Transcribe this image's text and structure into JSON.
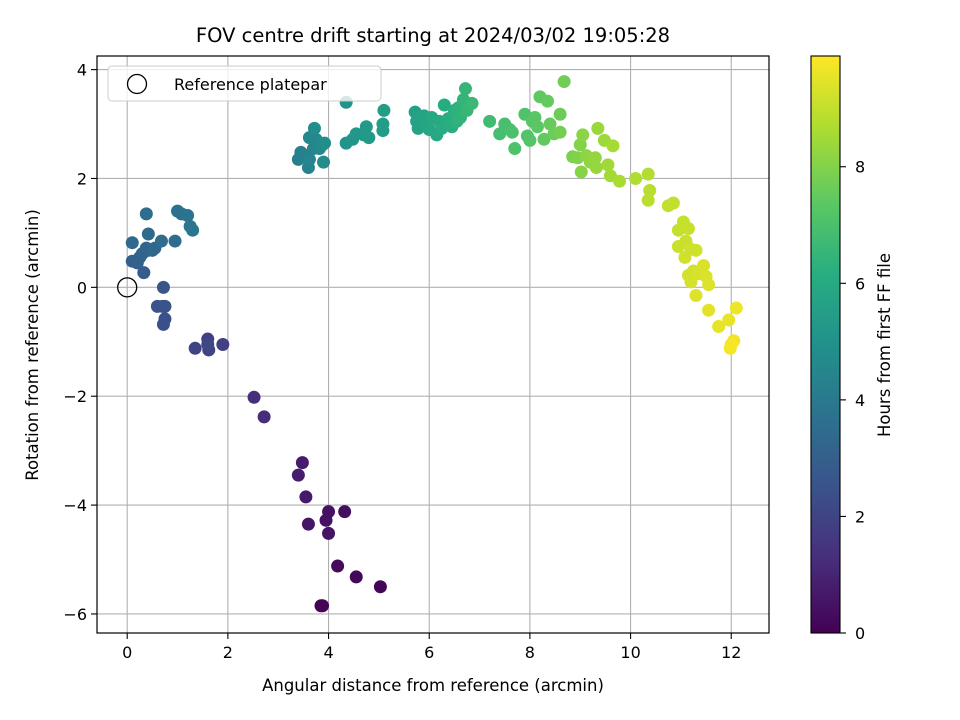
{
  "chart_data": {
    "type": "scatter",
    "title": "FOV centre drift starting at 2024/03/02 19:05:28",
    "xlabel": "Angular distance from reference (arcmin)",
    "ylabel": "Rotation from reference (arcmin)",
    "xlim": [
      -0.6,
      12.75
    ],
    "ylim": [
      -6.35,
      4.25
    ],
    "xticks": [
      0,
      2,
      4,
      6,
      8,
      10,
      12
    ],
    "xtick_labels": [
      "0",
      "2",
      "4",
      "6",
      "8",
      "10",
      "12"
    ],
    "yticks": [
      -6,
      -4,
      -2,
      0,
      2,
      4
    ],
    "ytick_labels": [
      "−6",
      "−4",
      "−2",
      "0",
      "2",
      "4"
    ],
    "grid": true,
    "legend": {
      "placement": "top-left",
      "entries": [
        {
          "label": "Reference platepar",
          "marker": "open-circle"
        }
      ]
    },
    "reference_point": {
      "x": 0,
      "y": 0
    },
    "colormap": "viridis",
    "colorbar": {
      "label": "Hours from first FF file",
      "range": [
        0,
        9.9
      ],
      "ticks": [
        0,
        2,
        4,
        6,
        8
      ],
      "tick_labels": [
        "0",
        "2",
        "4",
        "6",
        "8"
      ]
    },
    "points": [
      {
        "x": 3.85,
        "y": -5.85,
        "c": 0.05
      },
      {
        "x": 3.88,
        "y": -5.85,
        "c": 0.1
      },
      {
        "x": 5.03,
        "y": -5.5,
        "c": 0.15
      },
      {
        "x": 4.55,
        "y": -5.32,
        "c": 0.2
      },
      {
        "x": 4.18,
        "y": -5.12,
        "c": 0.25
      },
      {
        "x": 4.32,
        "y": -4.12,
        "c": 0.4
      },
      {
        "x": 4.0,
        "y": -4.12,
        "c": 0.45
      },
      {
        "x": 3.95,
        "y": -4.28,
        "c": 0.5
      },
      {
        "x": 4.0,
        "y": -4.52,
        "c": 0.55
      },
      {
        "x": 3.6,
        "y": -4.35,
        "c": 0.6
      },
      {
        "x": 3.55,
        "y": -3.85,
        "c": 0.7
      },
      {
        "x": 3.48,
        "y": -3.22,
        "c": 0.75
      },
      {
        "x": 3.4,
        "y": -3.45,
        "c": 0.8
      },
      {
        "x": 2.72,
        "y": -2.38,
        "c": 1.3
      },
      {
        "x": 2.52,
        "y": -2.02,
        "c": 1.35
      },
      {
        "x": 1.9,
        "y": -1.05,
        "c": 1.9
      },
      {
        "x": 1.6,
        "y": -0.95,
        "c": 1.95
      },
      {
        "x": 1.62,
        "y": -1.15,
        "c": 2.0
      },
      {
        "x": 1.35,
        "y": -1.12,
        "c": 2.05
      },
      {
        "x": 1.6,
        "y": -1.05,
        "c": 2.1
      },
      {
        "x": 0.75,
        "y": -0.58,
        "c": 2.4
      },
      {
        "x": 0.72,
        "y": -0.68,
        "c": 2.45
      },
      {
        "x": 0.7,
        "y": -0.35,
        "c": 2.5
      },
      {
        "x": 0.6,
        "y": -0.35,
        "c": 2.55
      },
      {
        "x": 0.75,
        "y": -0.35,
        "c": 2.6
      },
      {
        "x": 0.72,
        "y": 0.0,
        "c": 2.65
      },
      {
        "x": 0.33,
        "y": 0.27,
        "c": 2.9
      },
      {
        "x": 0.2,
        "y": 0.45,
        "c": 3.0
      },
      {
        "x": 0.1,
        "y": 0.48,
        "c": 3.05
      },
      {
        "x": 0.25,
        "y": 0.55,
        "c": 3.1
      },
      {
        "x": 0.3,
        "y": 0.62,
        "c": 3.15
      },
      {
        "x": 0.42,
        "y": 0.68,
        "c": 3.2
      },
      {
        "x": 0.38,
        "y": 0.72,
        "c": 3.25
      },
      {
        "x": 0.5,
        "y": 0.68,
        "c": 3.3
      },
      {
        "x": 0.55,
        "y": 0.72,
        "c": 3.35
      },
      {
        "x": 0.1,
        "y": 0.82,
        "c": 3.4
      },
      {
        "x": 0.42,
        "y": 0.98,
        "c": 3.45
      },
      {
        "x": 0.68,
        "y": 0.85,
        "c": 3.5
      },
      {
        "x": 0.95,
        "y": 0.85,
        "c": 3.55
      },
      {
        "x": 0.38,
        "y": 1.35,
        "c": 3.6
      },
      {
        "x": 1.0,
        "y": 1.4,
        "c": 3.7
      },
      {
        "x": 1.08,
        "y": 1.35,
        "c": 3.75
      },
      {
        "x": 1.2,
        "y": 1.32,
        "c": 3.8
      },
      {
        "x": 1.25,
        "y": 1.12,
        "c": 3.85
      },
      {
        "x": 1.3,
        "y": 1.05,
        "c": 3.9
      },
      {
        "x": 3.4,
        "y": 2.35,
        "c": 4.25
      },
      {
        "x": 3.45,
        "y": 2.48,
        "c": 4.3
      },
      {
        "x": 3.55,
        "y": 2.42,
        "c": 4.35
      },
      {
        "x": 3.6,
        "y": 2.2,
        "c": 4.4
      },
      {
        "x": 3.62,
        "y": 2.35,
        "c": 4.45
      },
      {
        "x": 3.7,
        "y": 2.55,
        "c": 4.5
      },
      {
        "x": 3.62,
        "y": 2.75,
        "c": 4.55
      },
      {
        "x": 3.75,
        "y": 2.72,
        "c": 4.6
      },
      {
        "x": 3.82,
        "y": 2.55,
        "c": 4.65
      },
      {
        "x": 3.88,
        "y": 2.62,
        "c": 4.7
      },
      {
        "x": 3.9,
        "y": 2.3,
        "c": 4.75
      },
      {
        "x": 3.72,
        "y": 2.92,
        "c": 4.8
      },
      {
        "x": 3.92,
        "y": 2.65,
        "c": 4.85
      },
      {
        "x": 4.35,
        "y": 3.4,
        "c": 5.05
      },
      {
        "x": 4.35,
        "y": 2.65,
        "c": 5.1
      },
      {
        "x": 4.48,
        "y": 2.72,
        "c": 5.15
      },
      {
        "x": 4.55,
        "y": 2.82,
        "c": 5.2
      },
      {
        "x": 4.7,
        "y": 2.8,
        "c": 5.25
      },
      {
        "x": 4.75,
        "y": 2.95,
        "c": 5.3
      },
      {
        "x": 4.8,
        "y": 2.75,
        "c": 5.35
      },
      {
        "x": 5.08,
        "y": 2.88,
        "c": 5.4
      },
      {
        "x": 5.08,
        "y": 3.0,
        "c": 5.45
      },
      {
        "x": 5.1,
        "y": 3.25,
        "c": 5.5
      },
      {
        "x": 5.72,
        "y": 3.22,
        "c": 5.6
      },
      {
        "x": 5.75,
        "y": 3.05,
        "c": 5.65
      },
      {
        "x": 5.78,
        "y": 2.92,
        "c": 5.7
      },
      {
        "x": 5.85,
        "y": 3.1,
        "c": 5.75
      },
      {
        "x": 5.9,
        "y": 3.15,
        "c": 5.8
      },
      {
        "x": 5.95,
        "y": 3.0,
        "c": 5.85
      },
      {
        "x": 6.0,
        "y": 2.9,
        "c": 5.9
      },
      {
        "x": 6.05,
        "y": 3.12,
        "c": 5.95
      },
      {
        "x": 6.15,
        "y": 2.8,
        "c": 6.0
      },
      {
        "x": 6.2,
        "y": 3.05,
        "c": 6.05
      },
      {
        "x": 6.25,
        "y": 2.92,
        "c": 6.1
      },
      {
        "x": 6.3,
        "y": 3.35,
        "c": 6.15
      },
      {
        "x": 6.38,
        "y": 3.1,
        "c": 6.2
      },
      {
        "x": 6.45,
        "y": 2.95,
        "c": 6.25
      },
      {
        "x": 6.5,
        "y": 3.25,
        "c": 6.3
      },
      {
        "x": 6.55,
        "y": 3.05,
        "c": 6.35
      },
      {
        "x": 6.58,
        "y": 3.3,
        "c": 6.4
      },
      {
        "x": 6.62,
        "y": 3.12,
        "c": 6.45
      },
      {
        "x": 6.68,
        "y": 3.45,
        "c": 6.5
      },
      {
        "x": 6.72,
        "y": 3.65,
        "c": 6.55
      },
      {
        "x": 6.75,
        "y": 3.25,
        "c": 6.6
      },
      {
        "x": 6.85,
        "y": 3.38,
        "c": 6.65
      },
      {
        "x": 7.2,
        "y": 3.05,
        "c": 6.8
      },
      {
        "x": 7.4,
        "y": 2.82,
        "c": 6.9
      },
      {
        "x": 7.5,
        "y": 3.0,
        "c": 6.95
      },
      {
        "x": 7.6,
        "y": 2.9,
        "c": 7.0
      },
      {
        "x": 7.65,
        "y": 2.85,
        "c": 7.05
      },
      {
        "x": 7.7,
        "y": 2.55,
        "c": 7.1
      },
      {
        "x": 7.9,
        "y": 3.18,
        "c": 7.15
      },
      {
        "x": 7.95,
        "y": 2.78,
        "c": 7.2
      },
      {
        "x": 8.0,
        "y": 2.7,
        "c": 7.25
      },
      {
        "x": 8.05,
        "y": 3.05,
        "c": 7.3
      },
      {
        "x": 8.1,
        "y": 3.12,
        "c": 7.35
      },
      {
        "x": 8.15,
        "y": 2.95,
        "c": 7.4
      },
      {
        "x": 8.2,
        "y": 3.5,
        "c": 7.45
      },
      {
        "x": 8.28,
        "y": 2.72,
        "c": 7.5
      },
      {
        "x": 8.35,
        "y": 3.42,
        "c": 7.55
      },
      {
        "x": 8.4,
        "y": 3.0,
        "c": 7.6
      },
      {
        "x": 8.48,
        "y": 2.82,
        "c": 7.65
      },
      {
        "x": 8.6,
        "y": 3.18,
        "c": 7.7
      },
      {
        "x": 8.68,
        "y": 3.78,
        "c": 7.75
      },
      {
        "x": 8.6,
        "y": 2.85,
        "c": 7.8
      },
      {
        "x": 8.85,
        "y": 2.4,
        "c": 7.95
      },
      {
        "x": 8.95,
        "y": 2.38,
        "c": 8.0
      },
      {
        "x": 9.0,
        "y": 2.62,
        "c": 8.05
      },
      {
        "x": 9.02,
        "y": 2.12,
        "c": 8.1
      },
      {
        "x": 9.05,
        "y": 2.8,
        "c": 8.15
      },
      {
        "x": 9.12,
        "y": 2.42,
        "c": 8.2
      },
      {
        "x": 9.2,
        "y": 2.3,
        "c": 8.25
      },
      {
        "x": 9.3,
        "y": 2.38,
        "c": 8.3
      },
      {
        "x": 9.32,
        "y": 2.2,
        "c": 8.35
      },
      {
        "x": 9.35,
        "y": 2.92,
        "c": 8.4
      },
      {
        "x": 9.48,
        "y": 2.7,
        "c": 8.45
      },
      {
        "x": 9.55,
        "y": 2.25,
        "c": 8.5
      },
      {
        "x": 9.6,
        "y": 2.05,
        "c": 8.55
      },
      {
        "x": 9.65,
        "y": 2.6,
        "c": 8.6
      },
      {
        "x": 9.78,
        "y": 1.95,
        "c": 8.65
      },
      {
        "x": 10.1,
        "y": 2.0,
        "c": 8.75
      },
      {
        "x": 10.35,
        "y": 2.08,
        "c": 8.8
      },
      {
        "x": 10.38,
        "y": 1.78,
        "c": 8.85
      },
      {
        "x": 10.35,
        "y": 1.6,
        "c": 8.9
      },
      {
        "x": 10.75,
        "y": 1.5,
        "c": 9.0
      },
      {
        "x": 10.85,
        "y": 1.55,
        "c": 9.02
      },
      {
        "x": 10.95,
        "y": 1.05,
        "c": 9.05
      },
      {
        "x": 11.05,
        "y": 1.2,
        "c": 9.08
      },
      {
        "x": 11.15,
        "y": 1.08,
        "c": 9.1
      },
      {
        "x": 10.95,
        "y": 0.75,
        "c": 9.12
      },
      {
        "x": 11.1,
        "y": 0.85,
        "c": 9.15
      },
      {
        "x": 11.2,
        "y": 0.7,
        "c": 9.18
      },
      {
        "x": 11.3,
        "y": 0.68,
        "c": 9.2
      },
      {
        "x": 11.08,
        "y": 0.55,
        "c": 9.22
      },
      {
        "x": 11.15,
        "y": 0.22,
        "c": 9.25
      },
      {
        "x": 11.25,
        "y": 0.3,
        "c": 9.28
      },
      {
        "x": 11.2,
        "y": 0.1,
        "c": 9.3
      },
      {
        "x": 11.35,
        "y": 0.25,
        "c": 9.32
      },
      {
        "x": 11.45,
        "y": 0.4,
        "c": 9.35
      },
      {
        "x": 11.5,
        "y": 0.2,
        "c": 9.38
      },
      {
        "x": 11.55,
        "y": 0.05,
        "c": 9.4
      },
      {
        "x": 11.3,
        "y": -0.15,
        "c": 9.42
      },
      {
        "x": 11.55,
        "y": -0.42,
        "c": 9.5
      },
      {
        "x": 11.75,
        "y": -0.72,
        "c": 9.55
      },
      {
        "x": 11.95,
        "y": -0.6,
        "c": 9.6
      },
      {
        "x": 12.1,
        "y": -0.38,
        "c": 9.65
      },
      {
        "x": 12.05,
        "y": -0.98,
        "c": 9.7
      },
      {
        "x": 11.98,
        "y": -1.12,
        "c": 9.75
      },
      {
        "x": 12.0,
        "y": -1.05,
        "c": 9.8
      }
    ]
  }
}
